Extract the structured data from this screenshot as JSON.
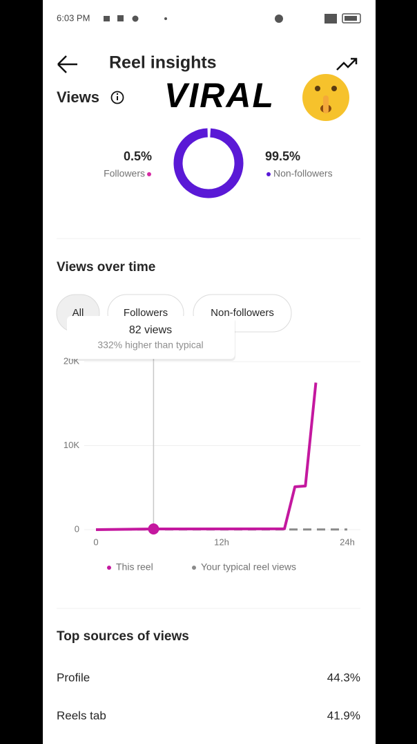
{
  "status_bar": {
    "time": "6:03 PM"
  },
  "header": {
    "title": "Reel insights"
  },
  "sticker": {
    "text": "VIRAL"
  },
  "tabs": [
    "All",
    "Followers",
    "Non-followers"
  ],
  "tooltip": {
    "title": "82 views",
    "subtitle": "332% higher than typical"
  },
  "chart_data": [
    {
      "type": "pie",
      "title": "Views",
      "categories": [
        "Followers",
        "Non-followers"
      ],
      "values": [
        0.5,
        99.5
      ],
      "value_labels": [
        "0.5%",
        "99.5%"
      ],
      "colors": [
        "#d62aa4",
        "#5a19d6"
      ]
    },
    {
      "type": "line",
      "title": "Views over time",
      "x": [
        0,
        5.5,
        18,
        19,
        20,
        21,
        24
      ],
      "series": [
        {
          "name": "This reel",
          "color": "#c4189f",
          "values": [
            0,
            82,
            100,
            5100,
            5200,
            17500,
            null
          ]
        },
        {
          "name": "Your typical reel views",
          "color": "#8a8a8a",
          "dashed": true,
          "values": [
            19,
            19,
            19,
            19,
            19,
            19,
            19
          ]
        }
      ],
      "highlight_index": 1,
      "xlim": [
        0,
        24
      ],
      "xticks": [
        0,
        {
          "value": 12,
          "label": "12h"
        },
        {
          "value": 24,
          "label": "24h"
        }
      ],
      "ylim": [
        0,
        20000
      ],
      "yticks": [
        0,
        {
          "value": 10000,
          "label": "10K"
        },
        {
          "value": 20000,
          "label": "20K"
        }
      ],
      "grid": true
    }
  ],
  "sources": {
    "title": "Top sources of views",
    "rows": [
      [
        "Profile",
        "44.3%"
      ],
      [
        "Reels tab",
        "41.9%"
      ]
    ]
  }
}
